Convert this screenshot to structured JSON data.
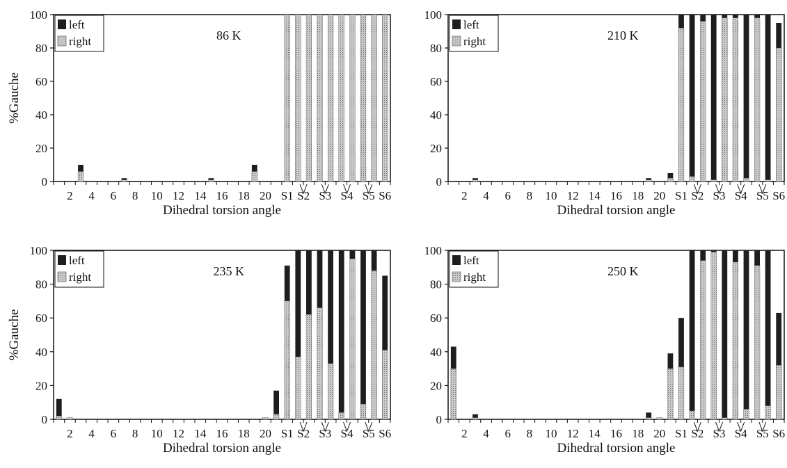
{
  "colors": {
    "left": "#1e1e1e",
    "right": "#c9c9c9",
    "axis": "#111111",
    "background": "#ffffff"
  },
  "chart_data": [
    {
      "type": "bar",
      "title": "86 K",
      "xlabel": "Dihedral torsion angle",
      "ylabel": "%Gauche",
      "ylim": [
        0,
        100
      ],
      "yticks": [
        "0",
        "20",
        "40",
        "60",
        "80",
        "100"
      ],
      "xtick_labels": [
        "2",
        "4",
        "6",
        "8",
        "10",
        "12",
        "14",
        "16",
        "18",
        "20",
        "S1",
        "S2",
        "S3",
        "S4",
        "S5",
        "S6"
      ],
      "legend": {
        "position": "top-left",
        "entries": [
          "left",
          "right"
        ]
      },
      "categories": [
        "1",
        "2",
        "3",
        "4",
        "5",
        "6",
        "7",
        "8",
        "9",
        "10",
        "11",
        "12",
        "13",
        "14",
        "15",
        "16",
        "17",
        "18",
        "19",
        "20",
        "21",
        "S1",
        "S2-1",
        "S2-2",
        "S3-1",
        "S3-2",
        "S4-1",
        "S4-2",
        "S5-1",
        "S5-2",
        "S6"
      ],
      "series": [
        {
          "name": "left",
          "values": [
            0,
            0,
            10,
            0,
            0,
            0,
            2,
            0,
            0,
            0,
            0,
            0,
            0,
            0,
            2,
            0,
            0,
            0,
            10,
            0,
            0,
            100,
            100,
            100,
            100,
            100,
            100,
            100,
            100,
            100,
            100
          ]
        },
        {
          "name": "right",
          "values": [
            0,
            0,
            6,
            0,
            0,
            0,
            1,
            0,
            0,
            0,
            0,
            0,
            0,
            0,
            1,
            0,
            0,
            0,
            6,
            0,
            0,
            100,
            100,
            100,
            100,
            100,
            100,
            100,
            100,
            100,
            100
          ]
        }
      ]
    },
    {
      "type": "bar",
      "title": "210 K",
      "xlabel": "Dihedral torsion angle",
      "ylabel": "",
      "ylim": [
        0,
        100
      ],
      "yticks": [
        "0",
        "20",
        "40",
        "60",
        "80",
        "100"
      ],
      "xtick_labels": [
        "2",
        "4",
        "6",
        "8",
        "10",
        "12",
        "14",
        "16",
        "18",
        "20",
        "S1",
        "S2",
        "S3",
        "S4",
        "S5",
        "S6"
      ],
      "legend": {
        "position": "top-left",
        "entries": [
          "left",
          "right"
        ]
      },
      "categories": [
        "1",
        "2",
        "3",
        "4",
        "5",
        "6",
        "7",
        "8",
        "9",
        "10",
        "11",
        "12",
        "13",
        "14",
        "15",
        "16",
        "17",
        "18",
        "19",
        "20",
        "21",
        "S1",
        "S2-1",
        "S2-2",
        "S3-1",
        "S3-2",
        "S4-1",
        "S4-2",
        "S5-1",
        "S5-2",
        "S6"
      ],
      "series": [
        {
          "name": "left",
          "values": [
            0,
            0,
            2,
            0,
            0,
            0,
            0,
            0,
            0,
            0,
            0,
            0,
            0,
            0,
            0,
            0,
            0,
            0,
            2,
            0,
            5,
            100,
            100,
            100,
            100,
            100,
            100,
            100,
            100,
            100,
            95
          ]
        },
        {
          "name": "right",
          "values": [
            0,
            0,
            1,
            0,
            0,
            0,
            0,
            0,
            0,
            0,
            0,
            0,
            0,
            0,
            0,
            0,
            0,
            0,
            1,
            0,
            2,
            92,
            3,
            96,
            1,
            98,
            98,
            2,
            98,
            1,
            80
          ]
        }
      ]
    },
    {
      "type": "bar",
      "title": "235 K",
      "xlabel": "Dihedral torsion angle",
      "ylabel": "%Gauche",
      "ylim": [
        0,
        100
      ],
      "yticks": [
        "0",
        "20",
        "40",
        "60",
        "80",
        "100"
      ],
      "xtick_labels": [
        "2",
        "4",
        "6",
        "8",
        "10",
        "12",
        "14",
        "16",
        "18",
        "20",
        "S1",
        "S2",
        "S3",
        "S4",
        "S5",
        "S6"
      ],
      "legend": {
        "position": "top-left",
        "entries": [
          "left",
          "right"
        ]
      },
      "categories": [
        "1",
        "2",
        "3",
        "4",
        "5",
        "6",
        "7",
        "8",
        "9",
        "10",
        "11",
        "12",
        "13",
        "14",
        "15",
        "16",
        "17",
        "18",
        "19",
        "20",
        "21",
        "S1",
        "S2-1",
        "S2-2",
        "S3-1",
        "S3-2",
        "S4-1",
        "S4-2",
        "S5-1",
        "S5-2",
        "S6"
      ],
      "series": [
        {
          "name": "left",
          "values": [
            12,
            1,
            0,
            0,
            0,
            0,
            0,
            0,
            0,
            0,
            0,
            0,
            0,
            0,
            0,
            0,
            0,
            0,
            0,
            1,
            17,
            91,
            100,
            100,
            100,
            100,
            100,
            100,
            100,
            100,
            85
          ]
        },
        {
          "name": "right",
          "values": [
            2,
            1,
            0,
            0,
            0,
            0,
            0,
            0,
            0,
            0,
            0,
            0,
            0,
            0,
            0,
            0,
            0,
            0,
            0,
            1,
            3,
            70,
            37,
            62,
            66,
            33,
            4,
            95,
            9,
            88,
            41
          ]
        }
      ]
    },
    {
      "type": "bar",
      "title": "250 K",
      "xlabel": "Dihedral torsion angle",
      "ylabel": "",
      "ylim": [
        0,
        100
      ],
      "yticks": [
        "0",
        "20",
        "40",
        "60",
        "80",
        "100"
      ],
      "xtick_labels": [
        "2",
        "4",
        "6",
        "8",
        "10",
        "12",
        "14",
        "16",
        "18",
        "20",
        "S1",
        "S2",
        "S3",
        "S4",
        "S5",
        "S6"
      ],
      "legend": {
        "position": "top-left",
        "entries": [
          "left",
          "right"
        ]
      },
      "categories": [
        "1",
        "2",
        "3",
        "4",
        "5",
        "6",
        "7",
        "8",
        "9",
        "10",
        "11",
        "12",
        "13",
        "14",
        "15",
        "16",
        "17",
        "18",
        "19",
        "20",
        "21",
        "S1",
        "S2-1",
        "S2-2",
        "S3-1",
        "S3-2",
        "S4-1",
        "S4-2",
        "S5-1",
        "S5-2",
        "S6"
      ],
      "series": [
        {
          "name": "left",
          "values": [
            43,
            0,
            3,
            0,
            0,
            0,
            0,
            0,
            0,
            0,
            0,
            0,
            0,
            0,
            0,
            0,
            0,
            0,
            4,
            1,
            39,
            60,
            100,
            100,
            100,
            100,
            100,
            100,
            100,
            100,
            63
          ]
        },
        {
          "name": "right",
          "values": [
            30,
            0,
            1,
            0,
            0,
            0,
            0,
            0,
            0,
            0,
            0,
            0,
            0,
            0,
            0,
            0,
            0,
            0,
            1,
            1,
            30,
            31,
            5,
            94,
            99,
            1,
            93,
            6,
            91,
            8,
            32
          ]
        }
      ]
    }
  ]
}
